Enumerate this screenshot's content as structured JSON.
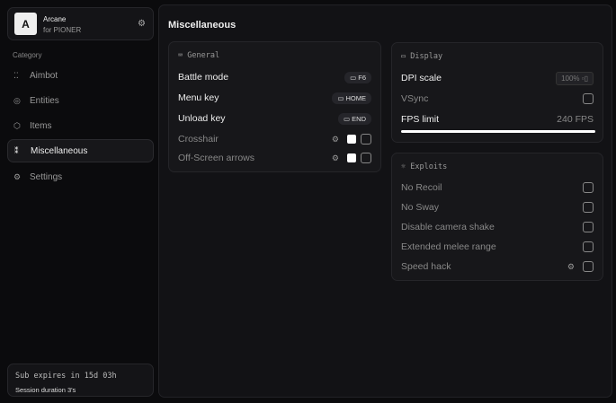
{
  "app": {
    "logo_letter": "A",
    "name": "Arcane",
    "subtitle": "for PIONER"
  },
  "sidebar": {
    "category_label": "Category",
    "items": [
      {
        "label": "Aimbot",
        "icon": "crosshair-icon",
        "glyph": "⁚⁚"
      },
      {
        "label": "Entities",
        "icon": "entities-icon",
        "glyph": "◎"
      },
      {
        "label": "Items",
        "icon": "cube-icon",
        "glyph": "⬡"
      },
      {
        "label": "Miscellaneous",
        "icon": "misc-icon",
        "glyph": "⁑",
        "active": true
      },
      {
        "label": "Settings",
        "icon": "gear-icon",
        "glyph": "⚙"
      }
    ],
    "footer": {
      "sub": "Sub expires in 15d 03h",
      "session": "Session duration 3's"
    }
  },
  "main": {
    "title": "Miscellaneous",
    "general": {
      "title": "General",
      "battle_mode": "Battle mode",
      "battle_key": "F6",
      "menu_key": "Menu key",
      "menu_key_val": "HOME",
      "unload_key": "Unload key",
      "unload_key_val": "END",
      "crosshair": "Crosshair",
      "offscreen": "Off-Screen arrows"
    },
    "display": {
      "title": "Display",
      "dpi": "DPI scale",
      "dpi_val": "100%",
      "vsync": "VSync",
      "fps": "FPS limit",
      "fps_val": "240 FPS",
      "fps_fill": 1.0
    },
    "exploits": {
      "title": "Exploits",
      "items": [
        "No Recoil",
        "No Sway",
        "Disable camera shake",
        "Extended melee range",
        "Speed hack"
      ]
    }
  }
}
